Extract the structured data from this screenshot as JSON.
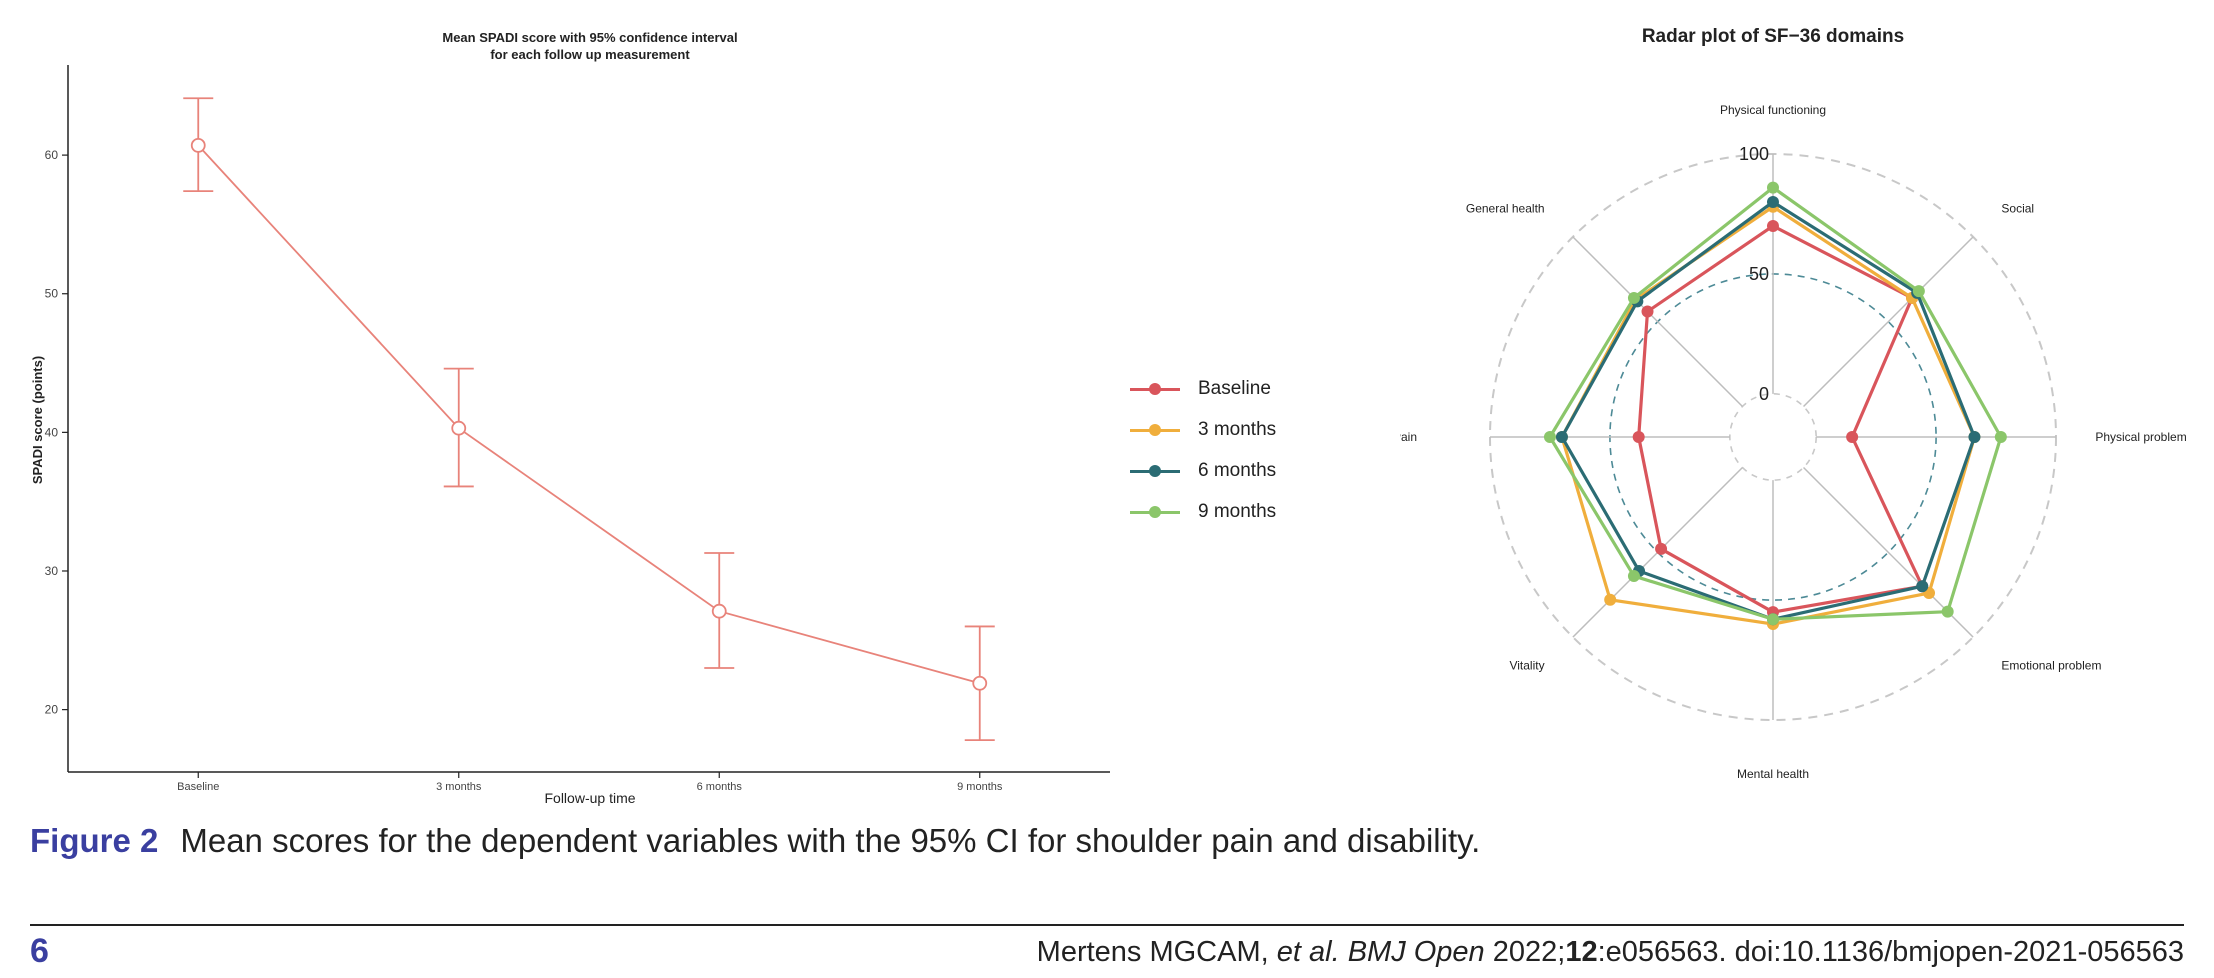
{
  "chart_data": [
    {
      "type": "line",
      "title": "Mean SPADI score with 95% confidence interval",
      "subtitle": "for each follow up measurement",
      "xlabel": "Follow-up time",
      "ylabel": "SPADI score (points)",
      "categories": [
        "Baseline",
        "3 months",
        "6 months",
        "9 months"
      ],
      "values": [
        60.7,
        40.3,
        27.1,
        21.9
      ],
      "ci_lower": [
        57.4,
        36.1,
        23.0,
        17.8
      ],
      "ci_upper": [
        64.1,
        44.6,
        31.3,
        26.0
      ],
      "ylim": [
        15.5,
        66.5
      ],
      "yticks": [
        20,
        30,
        40,
        50,
        60
      ],
      "color": "#e8837a",
      "grid": false
    },
    {
      "type": "radar",
      "title": "Radar plot of SF−36 domains",
      "axes": [
        "Physical functioning",
        "Social",
        "Physical problem",
        "Emotional problem",
        "Mental health",
        "Vitality",
        "Pain",
        "General health"
      ],
      "rticks": [
        "0",
        "50",
        "100"
      ],
      "rlim": [
        -18,
        100
      ],
      "legend_position": "left",
      "series": [
        {
          "name": "Baseline",
          "color": "#d9555b",
          "values": [
            70,
            64,
            15,
            70,
            55,
            48,
            38,
            56
          ]
        },
        {
          "name": "3 months",
          "color": "#f0ae3c",
          "values": [
            78,
            64,
            66,
            74,
            60,
            78,
            70,
            63
          ]
        },
        {
          "name": "6 months",
          "color": "#2b6c74",
          "values": [
            80,
            67,
            66,
            70,
            58,
            61,
            70,
            62
          ]
        },
        {
          "name": "9 months",
          "color": "#8bc66a",
          "values": [
            86,
            68,
            77,
            85,
            58,
            64,
            75,
            64
          ]
        }
      ]
    }
  ],
  "caption": {
    "label": "Figure 2",
    "text": "Mean scores for the dependent variables with the 95% CI for shoulder pain and disability."
  },
  "footer": {
    "page_number": "6",
    "authors": "Mertens MGCAM, ",
    "etal": "et al.",
    "journal": "BMJ Open",
    "year": "2022;",
    "volume": "12",
    "article": ":e056563. doi:10.1136/bmjopen-2021-056563"
  }
}
